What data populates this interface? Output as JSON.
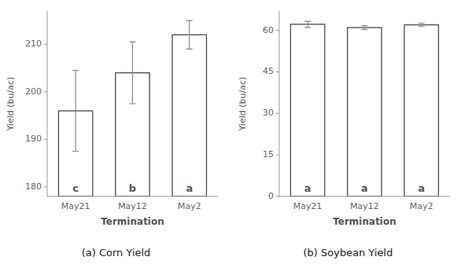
{
  "chart_data": [
    {
      "type": "bar",
      "title": "(a) Corn Yield",
      "xlabel": "Termination",
      "ylabel": "Yield (bu/ac)",
      "categories": [
        "May21",
        "May12",
        "May2"
      ],
      "values": [
        196.0,
        204.0,
        212.0
      ],
      "errors": [
        8.5,
        6.5,
        3.0
      ],
      "annotations": [
        "c",
        "b",
        "a"
      ],
      "color": "#ffffff",
      "ylim": [
        178,
        217
      ],
      "yticks": [
        180,
        190,
        200,
        210
      ],
      "grid": false
    },
    {
      "type": "bar",
      "title": "(b) Soybean Yield",
      "xlabel": "Termination",
      "ylabel": "Yield (bu/ac)",
      "categories": [
        "May21",
        "May12",
        "May2"
      ],
      "values": [
        62.2,
        61.0,
        62.0
      ],
      "errors": [
        1.1,
        0.7,
        0.6
      ],
      "annotations": [
        "a",
        "a",
        "a"
      ],
      "color": "#ffffff",
      "ylim": [
        0,
        67
      ],
      "yticks": [
        0,
        15,
        30,
        45,
        60
      ],
      "grid": false
    }
  ]
}
